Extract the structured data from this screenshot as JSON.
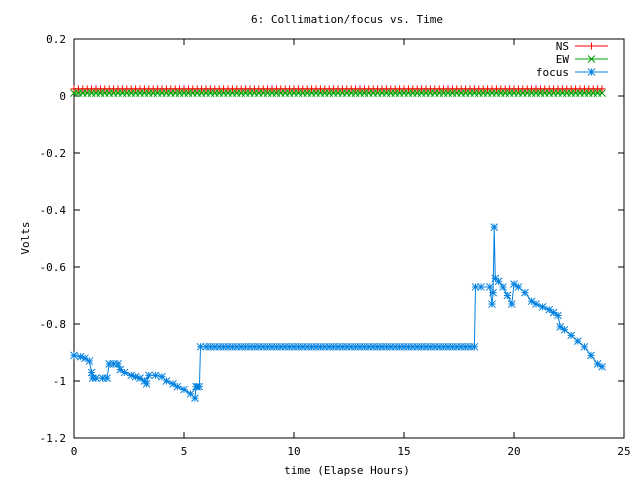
{
  "chart_data": {
    "type": "line",
    "title": "6: Collimation/focus vs. Time",
    "xlabel": "time (Elapse Hours)",
    "ylabel": "Volts",
    "xlim": [
      0,
      25
    ],
    "ylim": [
      -1.2,
      0.2
    ],
    "xticks": [
      "0",
      "5",
      "10",
      "15",
      "20",
      "25"
    ],
    "yticks": [
      "0.2",
      "0",
      "-0.2",
      "-0.4",
      "-0.6",
      "-0.8",
      "-1",
      "-1.2"
    ],
    "grid": false,
    "legend_position": "top-right",
    "series": [
      {
        "name": "NS",
        "color": "#ff0000",
        "marker": "plus",
        "points": [
          [
            0,
            0.025
          ],
          [
            24,
            0.025
          ]
        ]
      },
      {
        "name": "EW",
        "color": "#00a000",
        "marker": "cross",
        "points": [
          [
            0,
            0.01
          ],
          [
            24,
            0.01
          ]
        ]
      },
      {
        "name": "focus",
        "color": "#0080e0",
        "marker": "star",
        "points": [
          [
            0.0,
            -0.91
          ],
          [
            0.3,
            -0.915
          ],
          [
            0.5,
            -0.92
          ],
          [
            0.7,
            -0.93
          ],
          [
            0.8,
            -0.97
          ],
          [
            0.85,
            -0.99
          ],
          [
            1.0,
            -0.99
          ],
          [
            1.3,
            -0.99
          ],
          [
            1.5,
            -0.99
          ],
          [
            1.6,
            -0.94
          ],
          [
            1.8,
            -0.94
          ],
          [
            2.0,
            -0.94
          ],
          [
            2.1,
            -0.96
          ],
          [
            2.3,
            -0.97
          ],
          [
            2.6,
            -0.98
          ],
          [
            2.8,
            -0.985
          ],
          [
            3.0,
            -0.99
          ],
          [
            3.2,
            -1.0
          ],
          [
            3.3,
            -1.01
          ],
          [
            3.4,
            -0.98
          ],
          [
            3.7,
            -0.98
          ],
          [
            4.0,
            -0.985
          ],
          [
            4.2,
            -1.0
          ],
          [
            4.5,
            -1.01
          ],
          [
            4.7,
            -1.02
          ],
          [
            5.0,
            -1.03
          ],
          [
            5.3,
            -1.045
          ],
          [
            5.5,
            -1.06
          ],
          [
            5.55,
            -1.02
          ],
          [
            5.6,
            -1.02
          ],
          [
            5.7,
            -1.02
          ],
          [
            5.75,
            -0.88
          ],
          [
            6.0,
            -0.88
          ],
          [
            8.0,
            -0.88
          ],
          [
            10.0,
            -0.88
          ],
          [
            12.0,
            -0.88
          ],
          [
            14.0,
            -0.88
          ],
          [
            16.0,
            -0.88
          ],
          [
            18.0,
            -0.88
          ],
          [
            18.2,
            -0.88
          ],
          [
            18.25,
            -0.67
          ],
          [
            18.5,
            -0.67
          ],
          [
            18.9,
            -0.67
          ],
          [
            19.0,
            -0.73
          ],
          [
            19.05,
            -0.69
          ],
          [
            19.1,
            -0.46
          ],
          [
            19.15,
            -0.64
          ],
          [
            19.3,
            -0.65
          ],
          [
            19.5,
            -0.67
          ],
          [
            19.7,
            -0.7
          ],
          [
            19.9,
            -0.73
          ],
          [
            20.0,
            -0.66
          ],
          [
            20.2,
            -0.67
          ],
          [
            20.5,
            -0.69
          ],
          [
            20.8,
            -0.72
          ],
          [
            21.0,
            -0.73
          ],
          [
            21.3,
            -0.74
          ],
          [
            21.6,
            -0.75
          ],
          [
            21.8,
            -0.76
          ],
          [
            22.0,
            -0.77
          ],
          [
            22.1,
            -0.81
          ],
          [
            22.3,
            -0.82
          ],
          [
            22.6,
            -0.84
          ],
          [
            22.9,
            -0.86
          ],
          [
            23.2,
            -0.88
          ],
          [
            23.5,
            -0.91
          ],
          [
            23.8,
            -0.94
          ],
          [
            24.0,
            -0.95
          ]
        ]
      }
    ]
  }
}
